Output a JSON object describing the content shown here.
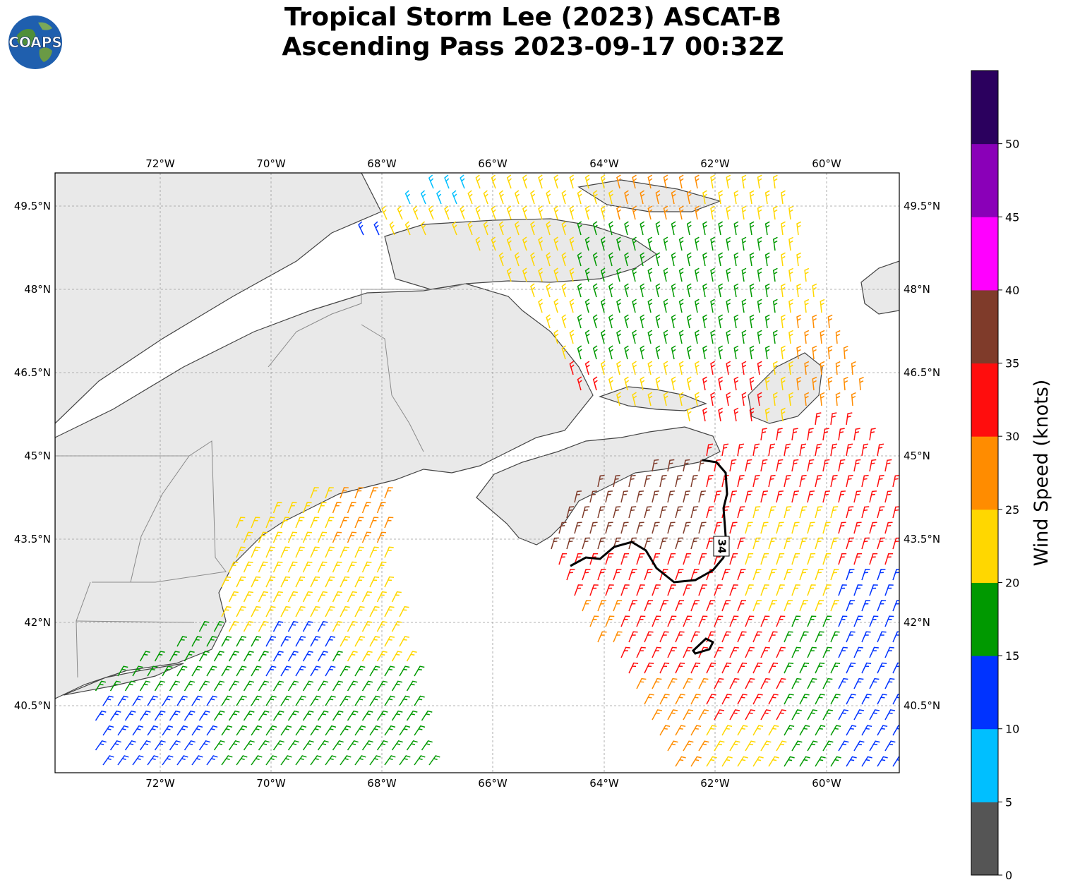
{
  "header": {
    "title_line1": "Tropical Storm Lee (2023) ASCAT-B",
    "title_line2": "Ascending Pass 2023-09-17 00:32Z"
  },
  "logo": {
    "text": "COAPS"
  },
  "map": {
    "lon_range": [
      -73.9,
      -58.7
    ],
    "lat_range": [
      39.3,
      50.1
    ],
    "lon_ticks": [
      "72°W",
      "70°W",
      "68°W",
      "66°W",
      "64°W",
      "62°W",
      "60°W"
    ],
    "lat_ticks": [
      "49.5°N",
      "48°N",
      "46.5°N",
      "45°N",
      "43.5°N",
      "42°N",
      "40.5°N"
    ],
    "contour_label": "34",
    "land_color": "#e9e9e9",
    "ocean_color": "#ffffff",
    "coast_color": "#444444"
  },
  "colorbar": {
    "label": "Wind Speed (knots)",
    "ticks": [
      "0",
      "5",
      "10",
      "15",
      "20",
      "25",
      "30",
      "35",
      "40",
      "45",
      "50"
    ],
    "colors": [
      "#555555",
      "#00bfff",
      "#0033ff",
      "#009900",
      "#ffd700",
      "#ff8c00",
      "#ff0d0d",
      "#7f3b2a",
      "#ff00ff",
      "#8a00b8",
      "#2b005e"
    ]
  }
}
